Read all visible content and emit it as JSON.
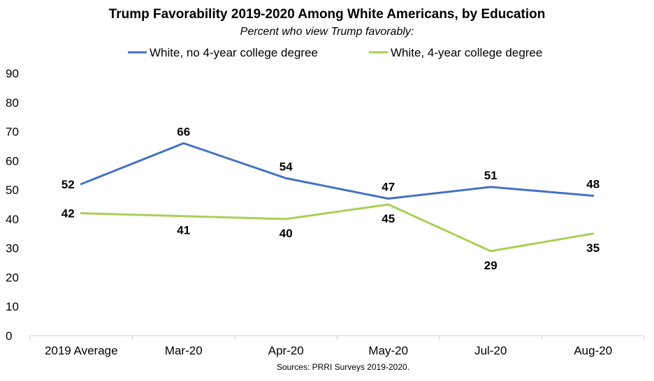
{
  "chart_data": {
    "type": "line",
    "title": "Trump Favorability 2019-2020 Among White Americans, by Education",
    "subtitle": "Percent who view Trump favorably:",
    "categories": [
      "2019 Average",
      "Mar-20",
      "Apr-20",
      "May-20",
      "Jul-20",
      "Aug-20"
    ],
    "series": [
      {
        "name": "White, no 4-year college degree",
        "color": "#4472C4",
        "values": [
          52,
          66,
          54,
          47,
          51,
          48
        ],
        "labels": [
          "52",
          "66",
          "54",
          "47",
          "51",
          "48"
        ]
      },
      {
        "name": "White, 4-year college degree",
        "color": "#A9CF54",
        "values": [
          42,
          41,
          40,
          45,
          29,
          35
        ],
        "labels": [
          "42",
          "41",
          "40",
          "45",
          "29",
          "35"
        ]
      }
    ],
    "y_ticks": [
      "0",
      "10",
      "20",
      "30",
      "40",
      "50",
      "60",
      "70",
      "80",
      "90"
    ],
    "ylim": [
      0,
      90
    ],
    "grid": false,
    "legend_position": "top",
    "source": "Sources: PRRI Surveys 2019-2020."
  }
}
